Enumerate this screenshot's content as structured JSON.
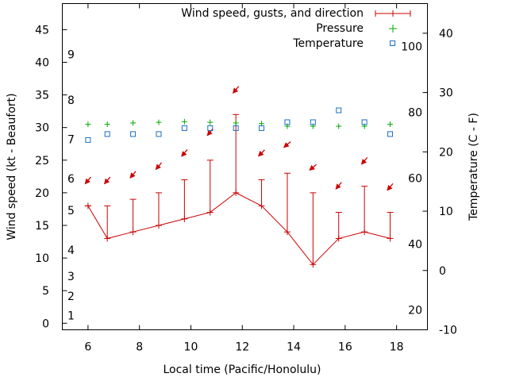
{
  "chart_data": {
    "type": "line",
    "xlabel": "Local time (Pacific/Honolulu)",
    "ylabel_left": "Wind speed (kt - Beaufort)",
    "ylabel_right": "Temperature (C - F)",
    "xlim": [
      5,
      19.2
    ],
    "x_ticks": [
      "6",
      "8",
      "10",
      "12",
      "14",
      "16",
      "18"
    ],
    "ylim_left": [
      -1,
      49
    ],
    "y_ticks_left": [
      "0",
      "5",
      "10",
      "15",
      "20",
      "25",
      "30",
      "35",
      "40",
      "45"
    ],
    "ylim_right_celsius": [
      -10,
      45
    ],
    "y_ticks_right_celsius": [
      "-10",
      "0",
      "10",
      "20",
      "30",
      "40"
    ],
    "fahrenheit_ticks": [
      {
        "label": "20",
        "celsius": -6.67
      },
      {
        "label": "40",
        "celsius": 4.44
      },
      {
        "label": "60",
        "celsius": 15.56
      },
      {
        "label": "80",
        "celsius": 26.67
      },
      {
        "label": "100",
        "celsius": 37.78
      }
    ],
    "beaufort_labels": [
      {
        "label": "1",
        "kt": 1.2
      },
      {
        "label": "2",
        "kt": 4.2
      },
      {
        "label": "3",
        "kt": 7.2
      },
      {
        "label": "4",
        "kt": 11.2
      },
      {
        "label": "5",
        "kt": 17.3
      },
      {
        "label": "6",
        "kt": 22.2
      },
      {
        "label": "7",
        "kt": 28.2
      },
      {
        "label": "8",
        "kt": 34.2
      },
      {
        "label": "9",
        "kt": 41.2
      }
    ],
    "legend": [
      {
        "label": "Wind speed, gusts, and direction",
        "color": "#cc0000",
        "marker": "errorbar"
      },
      {
        "label": "Pressure",
        "color": "#00aa00",
        "marker": "plus"
      },
      {
        "label": "Temperature",
        "color": "#1a6fc4",
        "marker": "square"
      }
    ],
    "series": [
      {
        "name": "Wind speed, gusts, and direction",
        "x": [
          6,
          6.75,
          7.75,
          8.75,
          9.75,
          10.75,
          11.75,
          12.75,
          13.75,
          14.75,
          15.75,
          16.75,
          17.75
        ],
        "speed": [
          18,
          13,
          14,
          15,
          16,
          17,
          20,
          18,
          14,
          9,
          13,
          14,
          13
        ],
        "gust": [
          18,
          18,
          19,
          20,
          22,
          25,
          32,
          22,
          23,
          20,
          17,
          21,
          17
        ],
        "direction_deg": [
          40,
          40,
          40,
          40,
          40,
          40,
          40,
          45,
          50,
          50,
          40,
          40,
          40
        ],
        "arrow_y_kt": [
          21.9,
          21.9,
          22.8,
          24.1,
          26.1,
          29.3,
          35.8,
          26.1,
          27.4,
          23.9,
          21.1,
          24.9,
          20.9
        ]
      },
      {
        "name": "Pressure",
        "x": [
          6,
          6.75,
          7.75,
          8.75,
          9.75,
          10.75,
          11.75,
          12.75,
          13.75,
          14.75,
          15.75,
          16.75,
          17.75
        ],
        "y_kt": [
          30.5,
          30.5,
          30.7,
          30.8,
          30.9,
          30.8,
          30.7,
          30.6,
          30.2,
          30.2,
          30.2,
          30.2,
          30.5
        ]
      },
      {
        "name": "Temperature",
        "x": [
          6,
          6.75,
          7.75,
          8.75,
          9.75,
          10.75,
          11.75,
          12.75,
          13.75,
          14.75,
          15.75,
          16.75,
          17.75
        ],
        "celsius": [
          22,
          23,
          23,
          23,
          24,
          24,
          24,
          24,
          25,
          25,
          27,
          25,
          23
        ]
      }
    ]
  }
}
